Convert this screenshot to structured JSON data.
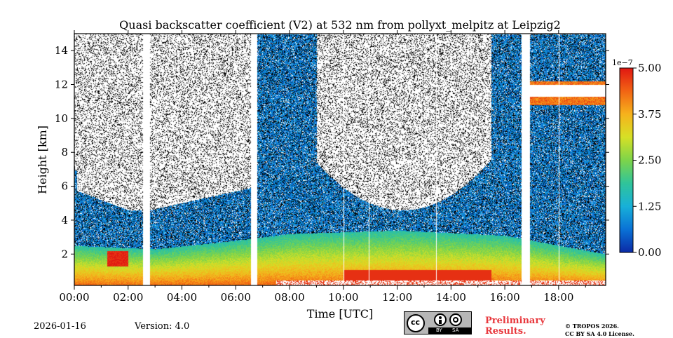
{
  "chart_data": {
    "type": "heatmap",
    "title": "Quasi backscatter coefficient (V2) at 532 nm from pollyxt_melpitz at Leipzig2",
    "xlabel": "Time [UTC]",
    "ylabel": "Height [km]",
    "xlim": [
      0,
      19.75
    ],
    "ylim": [
      0.15,
      15
    ],
    "x_ticks": [
      {
        "value": 0,
        "label": "00:00"
      },
      {
        "value": 2,
        "label": "02:00"
      },
      {
        "value": 4,
        "label": "04:00"
      },
      {
        "value": 6,
        "label": "06:00"
      },
      {
        "value": 8,
        "label": "08:00"
      },
      {
        "value": 10,
        "label": "10:00"
      },
      {
        "value": 12,
        "label": "12:00"
      },
      {
        "value": 14,
        "label": "14:00"
      },
      {
        "value": 16,
        "label": "16:00"
      },
      {
        "value": 18,
        "label": "18:00"
      }
    ],
    "y_ticks": [
      {
        "value": 2,
        "label": "2"
      },
      {
        "value": 4,
        "label": "4"
      },
      {
        "value": 6,
        "label": "6"
      },
      {
        "value": 8,
        "label": "8"
      },
      {
        "value": 10,
        "label": "10"
      },
      {
        "value": 12,
        "label": "12"
      },
      {
        "value": 14,
        "label": "14"
      }
    ],
    "colorbar": {
      "min": 0,
      "max": 5e-07,
      "scale_label": "1e−7",
      "ticks": [
        {
          "value": 0.0,
          "label": "0.00"
        },
        {
          "value": 1.25,
          "label": "1.25"
        },
        {
          "value": 2.5,
          "label": "2.50"
        },
        {
          "value": 3.75,
          "label": "3.75"
        },
        {
          "value": 5.0,
          "label": "5.00"
        }
      ],
      "colors": [
        "#0b2aa6",
        "#0a72d6",
        "#18b0d8",
        "#30c49a",
        "#7dd44a",
        "#d6e026",
        "#f6b21c",
        "#f26414",
        "#e01712"
      ]
    },
    "gaps_hours": [
      [
        2.55,
        2.8
      ],
      [
        6.55,
        6.8
      ],
      [
        16.6,
        16.92
      ]
    ],
    "boundary_layer_top_km": [
      {
        "t": 0,
        "h": 2.5
      },
      {
        "t": 3,
        "h": 2.3
      },
      {
        "t": 6,
        "h": 2.8
      },
      {
        "t": 8,
        "h": 3.2
      },
      {
        "t": 12,
        "h": 3.4
      },
      {
        "t": 16,
        "h": 3.1
      },
      {
        "t": 19.75,
        "h": 2.0
      }
    ],
    "cloud_layers": [
      {
        "t_start": 16.9,
        "t_end": 19.75,
        "h_bottom": 10.8,
        "h_top": 12.2
      }
    ]
  },
  "footer": {
    "date": "2026-01-16",
    "version": "Version: 4.0",
    "preliminary_line1": "Preliminary",
    "preliminary_line2": "Results.",
    "copyright_line1": "© TROPOS 2026.",
    "copyright_line2": "CC BY SA 4.0 License.",
    "license_by": "BY",
    "license_sa": "SA"
  }
}
